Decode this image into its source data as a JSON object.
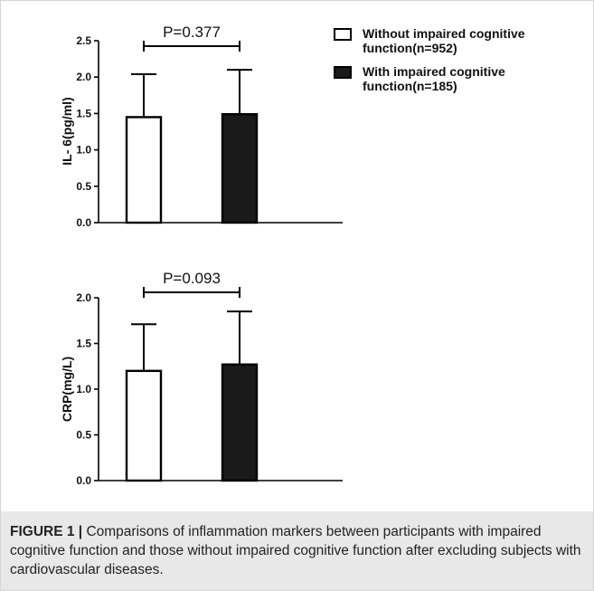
{
  "chart_data": [
    {
      "type": "bar",
      "categories": [
        "Without impaired cognitive function(n=952)",
        "With impaired cognitive function(n=185)"
      ],
      "values": [
        1.45,
        1.49
      ],
      "errors": [
        0.59,
        0.61
      ],
      "ylabel": "IL- 6(pg/ml)",
      "ylim": [
        0,
        2.5
      ],
      "yticks": [
        "0.0",
        "0.5",
        "1.0",
        "1.5",
        "2.0",
        "2.5"
      ],
      "annotation": "P=0.377",
      "colors": [
        "#ffffff",
        "#1a1a1a"
      ]
    },
    {
      "type": "bar",
      "categories": [
        "Without impaired cognitive function(n=952)",
        "With impaired cognitive function(n=185)"
      ],
      "values": [
        1.2,
        1.27
      ],
      "errors": [
        0.51,
        0.58
      ],
      "ylabel": "CRP(mg/L)",
      "ylim": [
        0,
        2.0
      ],
      "yticks": [
        "0.0",
        "0.5",
        "1.0",
        "1.5",
        "2.0"
      ],
      "annotation": "P=0.093",
      "colors": [
        "#ffffff",
        "#1a1a1a"
      ]
    }
  ],
  "legend": [
    {
      "label": "Without impaired cognitive function(n=952)",
      "fill": "#ffffff"
    },
    {
      "label": "With impaired cognitive function(n=185)",
      "fill": "#1a1a1a"
    }
  ],
  "caption": {
    "label": "FIGURE 1 |",
    "text": " Comparisons of inflammation markers between participants with impaired cognitive function and those without impaired cognitive function after excluding subjects with cardiovascular diseases."
  }
}
